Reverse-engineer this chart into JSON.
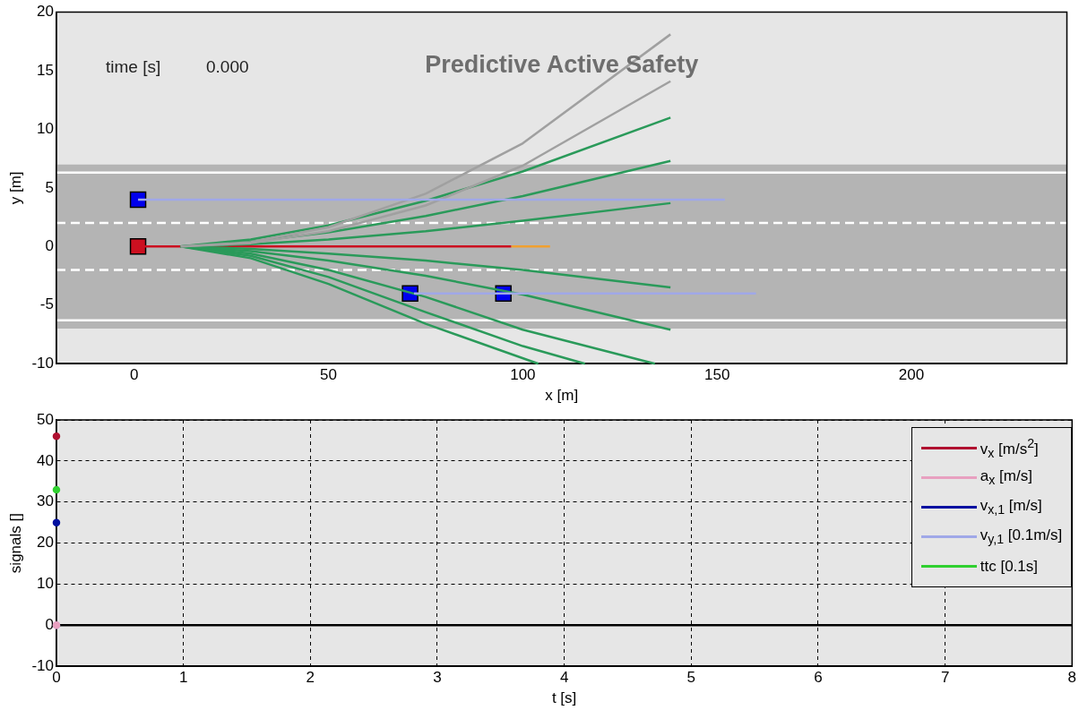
{
  "chart_data": [
    {
      "type": "line",
      "title": "Predictive Active Safety",
      "xlabel": "x [m]",
      "ylabel": "y [m]",
      "xlim": [
        -20,
        240
      ],
      "ylim": [
        -10,
        20
      ],
      "xticks": [
        0,
        50,
        100,
        150,
        200
      ],
      "yticks": [
        -10,
        -5,
        0,
        5,
        10,
        15,
        20
      ],
      "grid": false,
      "legend": false,
      "marker": "none",
      "line_style": "solid",
      "annotations": [
        "time [s]",
        "0.000"
      ],
      "bands": [
        {
          "axis": "y",
          "from": -7,
          "to": 7,
          "color": "#b4b4b4"
        }
      ],
      "ref_lines": [
        {
          "axis": "y",
          "value": 6.3,
          "color": "#ffffff",
          "line_style": "solid"
        },
        {
          "axis": "y",
          "value": -6.3,
          "color": "#ffffff",
          "line_style": "solid"
        },
        {
          "axis": "y",
          "value": 2,
          "color": "#ffffff",
          "line_style": "dashed"
        },
        {
          "axis": "y",
          "value": -2,
          "color": "#ffffff",
          "line_style": "dashed"
        }
      ],
      "series": [
        {
          "type": "line",
          "color": "#a0a8e8",
          "x": [
            1,
            152
          ],
          "values": [
            4,
            4
          ]
        },
        {
          "type": "line",
          "color": "#a0a8e8",
          "x": [
            72,
            160
          ],
          "values": [
            -4,
            -4
          ]
        },
        {
          "type": "line",
          "color": "#a0a0a0",
          "x": [
            12,
            30,
            50,
            75,
            100,
            138
          ],
          "values": [
            0,
            0.36,
            1.65,
            4.5,
            8.8,
            18.1
          ]
        },
        {
          "type": "line",
          "color": "#a0a0a0",
          "x": [
            12,
            30,
            50,
            75,
            100,
            138
          ],
          "values": [
            0,
            0.28,
            1.3,
            3.5,
            6.9,
            14.1
          ]
        },
        {
          "type": "line",
          "color": "#2a9a5a",
          "x": [
            12,
            30,
            50,
            75,
            100,
            138
          ],
          "values": [
            0,
            0.6,
            1.8,
            3.9,
            6.4,
            11
          ]
        },
        {
          "type": "line",
          "color": "#2a9a5a",
          "x": [
            12,
            30,
            50,
            75,
            100,
            138
          ],
          "values": [
            0,
            0.4,
            1.2,
            2.6,
            4.3,
            7.3
          ]
        },
        {
          "type": "line",
          "color": "#2a9a5a",
          "x": [
            12,
            30,
            50,
            75,
            100,
            138
          ],
          "values": [
            0,
            0.2,
            0.6,
            1.3,
            2.2,
            3.7
          ]
        },
        {
          "type": "line",
          "color": "#2a9a5a",
          "x": [
            12,
            30,
            50,
            75,
            100,
            138
          ],
          "values": [
            0,
            -0.2,
            -0.6,
            -1.2,
            -2,
            -3.5
          ]
        },
        {
          "type": "line",
          "color": "#2a9a5a",
          "x": [
            12,
            30,
            50,
            75,
            100,
            138
          ],
          "values": [
            0,
            -0.4,
            -1.2,
            -2.5,
            -4.1,
            -7.1
          ]
        },
        {
          "type": "line",
          "color": "#2a9a5a",
          "x": [
            12,
            30,
            50,
            75,
            100,
            134
          ],
          "values": [
            0,
            -0.6,
            -2,
            -4.3,
            -7.1,
            -10
          ]
        },
        {
          "type": "line",
          "color": "#2a9a5a",
          "x": [
            12,
            30,
            50,
            75,
            100,
            116
          ],
          "values": [
            0,
            -0.8,
            -2.6,
            -5.6,
            -8.5,
            -10
          ]
        },
        {
          "type": "line",
          "color": "#2a9a5a",
          "x": [
            12,
            30,
            50,
            75,
            104
          ],
          "values": [
            0,
            -1,
            -3.2,
            -6.6,
            -10
          ]
        },
        {
          "type": "line",
          "color": "#cc1020",
          "x": [
            1,
            97
          ],
          "values": [
            0,
            0
          ]
        },
        {
          "type": "line",
          "color": "#f0a030",
          "x": [
            97,
            107
          ],
          "values": [
            0,
            0
          ]
        },
        {
          "type": "scatter",
          "color": "#0000ee",
          "marker": "square",
          "x": [
            1,
            71,
            95
          ],
          "values": [
            4,
            -4,
            -4
          ]
        },
        {
          "type": "scatter",
          "color": "#cc1020",
          "marker": "square",
          "x": [
            1
          ],
          "values": [
            0
          ]
        }
      ]
    },
    {
      "type": "line",
      "xlabel": "t [s]",
      "ylabel": "signals []",
      "xlim": [
        0,
        8
      ],
      "ylim": [
        -10,
        50
      ],
      "xticks": [
        0,
        1,
        2,
        3,
        4,
        5,
        6,
        7,
        8
      ],
      "yticks": [
        -10,
        0,
        10,
        20,
        30,
        40,
        50
      ],
      "grid": true,
      "legend": "top right",
      "marker": "circle",
      "line_style": "solid",
      "ref_lines": [
        {
          "axis": "y",
          "value": 0,
          "color": "#000000",
          "line_style": "solid"
        }
      ],
      "series": [
        {
          "name": "v$_{x}$ [m/s$^{2}$]",
          "type": "line",
          "color": "#b01030",
          "x": [
            0
          ],
          "values": [
            46
          ]
        },
        {
          "name": "a$_{x}$ [m/s]",
          "type": "line",
          "color": "#e8a0c0",
          "x": [
            0
          ],
          "values": [
            0
          ]
        },
        {
          "name": "v$_{x,1}$ [m/s]",
          "type": "line",
          "color": "#0010a0",
          "x": [
            0
          ],
          "values": [
            25
          ]
        },
        {
          "name": "v$_{y,1}$ [0.1m/s]",
          "type": "line",
          "color": "#a0a8e8",
          "x": [
            0
          ],
          "values": [
            0
          ]
        },
        {
          "name": "ttc [0.1s]",
          "type": "line",
          "color": "#30d030",
          "x": [
            0
          ],
          "values": [
            33
          ]
        }
      ]
    }
  ]
}
